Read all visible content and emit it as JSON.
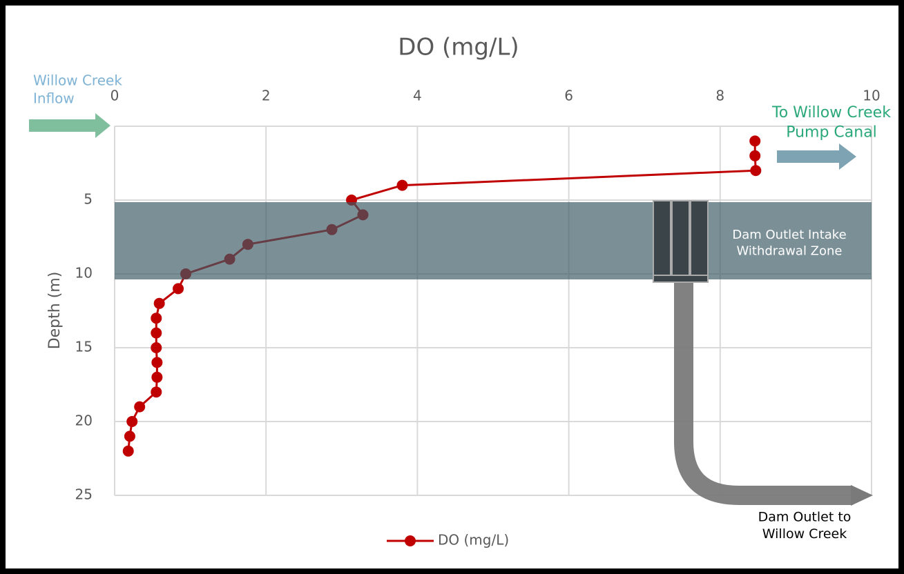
{
  "chart_data": {
    "type": "line",
    "title": "DO (mg/L)",
    "y_label": "Depth (m)",
    "xlim": [
      0,
      10
    ],
    "xticks": [
      0,
      2,
      4,
      6,
      8,
      10
    ],
    "ylim": [
      0,
      25
    ],
    "yticks": [
      0,
      5,
      10,
      15,
      20,
      25
    ],
    "y_inverted": true,
    "x_axis_position": "top",
    "grid": true,
    "legend": "bottom",
    "series": [
      {
        "name": "DO (mg/L)",
        "color": "#c00000",
        "x": [
          8.46,
          8.46,
          8.47,
          3.8,
          3.13,
          3.28,
          2.87,
          1.76,
          1.52,
          0.94,
          0.84,
          0.59,
          0.55,
          0.55,
          0.55,
          0.56,
          0.56,
          0.55,
          0.33,
          0.23,
          0.2,
          0.18
        ],
        "values": [
          1,
          2,
          3,
          4,
          5,
          6,
          7,
          8,
          9,
          10,
          11,
          12,
          13,
          14,
          15,
          16,
          17,
          18,
          19,
          20,
          21,
          22
        ]
      }
    ],
    "annotations": [
      {
        "lines": [
          "Willow Creek",
          "Inflow"
        ],
        "color": "#7fb3d5"
      },
      {
        "lines": [
          "To Willow Creek",
          "Pump Canal"
        ],
        "color": "#2aa87a"
      },
      {
        "lines": [
          "Dam Outlet Intake",
          "Withdrawal Zone"
        ],
        "color": "#ffffff"
      },
      {
        "lines": [
          "Dam Outlet to",
          "Willow Creek"
        ],
        "color": "#000000"
      }
    ]
  }
}
